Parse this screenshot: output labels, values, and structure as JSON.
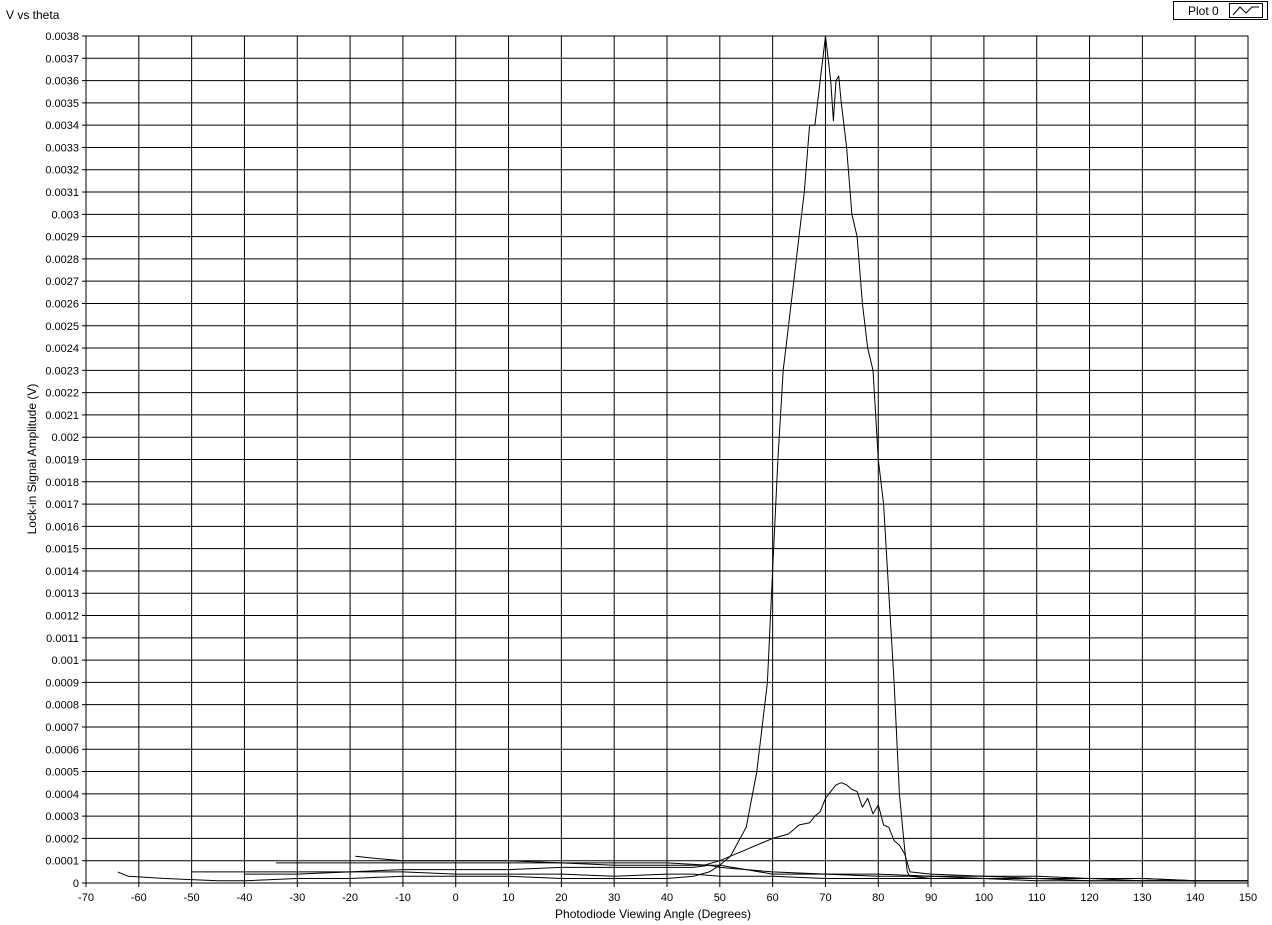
{
  "graph": {
    "title": "V vs theta",
    "legend": {
      "label": "Plot 0"
    }
  },
  "chart_data": {
    "type": "line",
    "title": "V vs theta",
    "xlabel": "Photodiode Viewing Angle (Degrees)",
    "ylabel": "Lock-in Signal Amplitude (V)",
    "xlim": [
      -70,
      150
    ],
    "ylim": [
      0,
      0.0038
    ],
    "x_ticks": [
      -70,
      -60,
      -50,
      -40,
      -30,
      -20,
      -10,
      0,
      10,
      20,
      30,
      40,
      50,
      60,
      70,
      80,
      90,
      100,
      110,
      120,
      130,
      140,
      150
    ],
    "y_ticks": [
      0,
      0.0001,
      0.0002,
      0.0003,
      0.0004,
      0.0005,
      0.0006,
      0.0007,
      0.0008,
      0.0009,
      0.001,
      0.0011,
      0.0012,
      0.0013,
      0.0014,
      0.0015,
      0.0016,
      0.0017,
      0.0018,
      0.0019,
      0.002,
      0.0021,
      0.0022,
      0.0023,
      0.0024,
      0.0025,
      0.0026,
      0.0027,
      0.0028,
      0.0029,
      0.003,
      0.0031,
      0.0032,
      0.0033,
      0.0034,
      0.0035,
      0.0036,
      0.0037,
      0.0038
    ],
    "y_tick_labels": [
      "0",
      "0.0001",
      "0.0002",
      "0.0003",
      "0.0004",
      "0.0005",
      "0.0006",
      "0.0007",
      "0.0008",
      "0.0009",
      "0.001",
      "0.0011",
      "0.0012",
      "0.0013",
      "0.0014",
      "0.0015",
      "0.0016",
      "0.0017",
      "0.0018",
      "0.0019",
      "0.002",
      "0.0021",
      "0.0022",
      "0.0023",
      "0.0024",
      "0.0025",
      "0.0026",
      "0.0027",
      "0.0028",
      "0.0029",
      "0.003",
      "0.0031",
      "0.0032",
      "0.0033",
      "0.0034",
      "0.0035",
      "0.0036",
      "0.0037",
      "0.0038"
    ],
    "grid": true,
    "legend_position": "top-right",
    "series": [
      {
        "name": "Plot 0",
        "color": "#000000",
        "x": [
          -64,
          -62,
          -55,
          -45,
          -40,
          -30,
          -20,
          -10,
          0,
          10,
          20,
          30,
          40,
          45,
          48,
          50,
          52,
          55,
          57,
          59,
          60,
          61,
          62,
          63,
          64,
          65,
          66,
          67,
          68,
          69,
          70,
          70.5,
          71,
          71.5,
          72,
          72.5,
          73,
          74,
          75,
          76,
          77,
          78,
          79,
          80,
          81,
          82,
          83,
          84,
          85,
          85.5,
          86,
          90,
          100,
          110,
          120,
          130,
          140,
          150
        ],
        "y": [
          5e-05,
          3e-05,
          2e-05,
          1e-05,
          1e-05,
          2e-05,
          2e-05,
          3e-05,
          3e-05,
          3e-05,
          2e-05,
          2e-05,
          2e-05,
          3e-05,
          5e-05,
          8e-05,
          0.00012,
          0.00025,
          0.0005,
          0.0009,
          0.0014,
          0.0019,
          0.0023,
          0.0025,
          0.0027,
          0.0029,
          0.0031,
          0.0034,
          0.0034,
          0.0036,
          0.0038,
          0.0037,
          0.0036,
          0.00342,
          0.0036,
          0.00362,
          0.0035,
          0.0033,
          0.003,
          0.0029,
          0.0026,
          0.0024,
          0.0023,
          0.0019,
          0.0017,
          0.0013,
          0.0009,
          0.0004,
          0.00015,
          5e-05,
          3e-05,
          2e-05,
          2e-05,
          1e-05,
          1e-05,
          1e-05,
          1e-05,
          1e-05
        ]
      },
      {
        "name": "Plot 0",
        "color": "#000000",
        "x": [
          -34,
          -30,
          -20,
          -10,
          0,
          10,
          20,
          30,
          40,
          47,
          50,
          55,
          60,
          63,
          65,
          67,
          68,
          69,
          70,
          71,
          72,
          73,
          74,
          75,
          76,
          77,
          78,
          79,
          80,
          81,
          82,
          83,
          84,
          85,
          86,
          90,
          100,
          110,
          120,
          130,
          140,
          150
        ],
        "y": [
          9e-05,
          9e-05,
          9e-05,
          9e-05,
          9e-05,
          9e-05,
          9e-05,
          8e-05,
          8e-05,
          8e-05,
          0.0001,
          0.00015,
          0.0002,
          0.00022,
          0.00026,
          0.00027,
          0.0003,
          0.00032,
          0.00038,
          0.00041,
          0.00044,
          0.00045,
          0.00044,
          0.00042,
          0.00041,
          0.00034,
          0.00038,
          0.00031,
          0.00035,
          0.00026,
          0.00025,
          0.00019,
          0.00017,
          0.00013,
          5e-05,
          4e-05,
          3e-05,
          3e-05,
          2e-05,
          2e-05,
          1e-05,
          1e-05
        ]
      },
      {
        "name": "Plot 0",
        "color": "#000000",
        "x": [
          -19,
          -15,
          -10,
          0,
          10,
          20,
          30,
          40,
          48,
          50,
          55,
          60,
          65,
          70,
          80,
          90,
          100,
          110,
          120,
          130,
          140,
          150
        ],
        "y": [
          0.00012,
          0.00011,
          0.0001,
          0.0001,
          0.0001,
          9e-05,
          9e-05,
          9e-05,
          8e-05,
          7e-05,
          6e-05,
          4e-05,
          4e-05,
          4e-05,
          3e-05,
          3e-05,
          2e-05,
          2e-05,
          2e-05,
          1e-05,
          1e-05,
          1e-05
        ]
      },
      {
        "name": "Plot 0",
        "color": "#000000",
        "x": [
          -50,
          -40,
          -30,
          -20,
          -10,
          0,
          10,
          20,
          30,
          40,
          45,
          48,
          50,
          55,
          60,
          70,
          80,
          90,
          100,
          110,
          120,
          130,
          140,
          150
        ],
        "y": [
          5e-05,
          5e-05,
          5e-05,
          5e-05,
          6e-05,
          6e-05,
          6e-05,
          7e-05,
          7e-05,
          7e-05,
          7e-05,
          8e-05,
          8e-05,
          6e-05,
          5e-05,
          4e-05,
          4e-05,
          3e-05,
          3e-05,
          2e-05,
          2e-05,
          2e-05,
          1e-05,
          1e-05
        ]
      },
      {
        "name": "Plot 0",
        "color": "#000000",
        "x": [
          -40,
          -30,
          -20,
          -10,
          0,
          10,
          20,
          30,
          40,
          45,
          50,
          55,
          60,
          70,
          80,
          90,
          100,
          110,
          120,
          130,
          140,
          150
        ],
        "y": [
          4e-05,
          4e-05,
          5e-05,
          5e-05,
          4e-05,
          4e-05,
          4e-05,
          3e-05,
          4e-05,
          4e-05,
          3e-05,
          3e-05,
          3e-05,
          2e-05,
          2e-05,
          2e-05,
          2e-05,
          2e-05,
          1e-05,
          1e-05,
          1e-05,
          1e-05
        ]
      }
    ]
  }
}
